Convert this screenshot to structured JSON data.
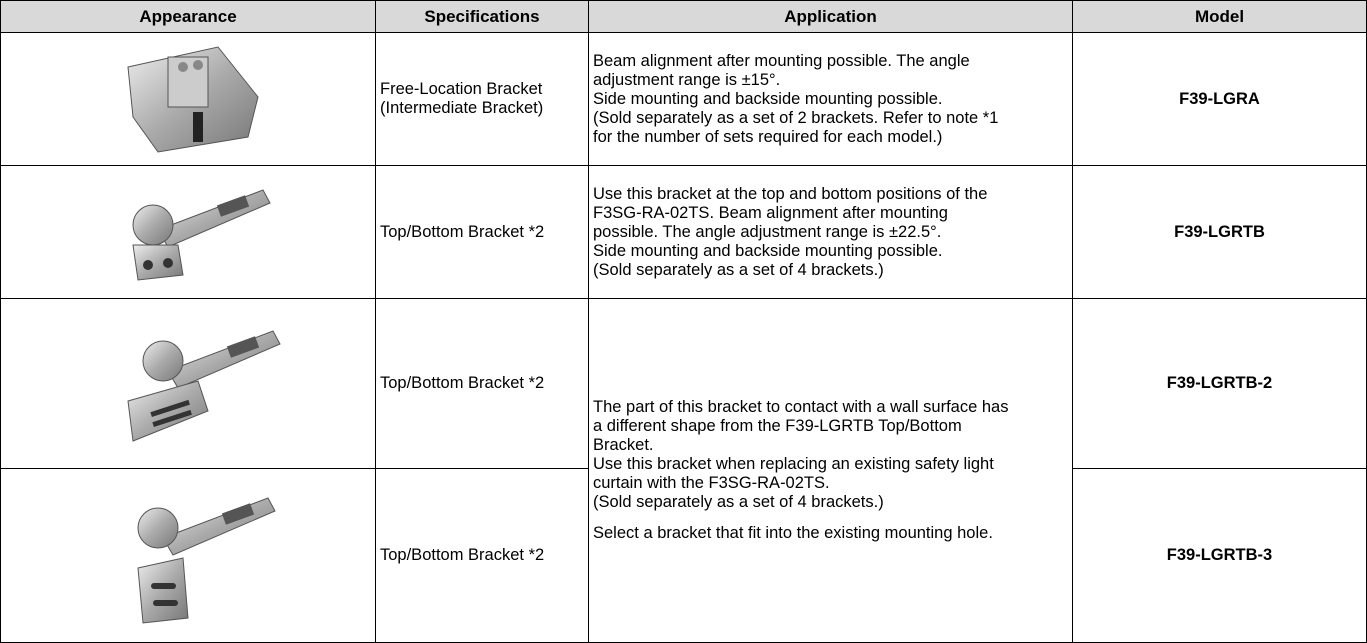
{
  "table": {
    "headers": [
      "Appearance",
      "Specifications",
      "Application",
      "Model"
    ],
    "rows": [
      {
        "specifications": [
          "Free-Location Bracket",
          "(Intermediate Bracket)"
        ],
        "application": [
          [
            "Beam alignment after mounting possible. The angle",
            "adjustment range is ±15°.",
            "Side mounting and backside mounting possible.",
            "(Sold separately as a set of 2 brackets. Refer to note *1",
            "for the number of sets required for each model.)"
          ]
        ],
        "model": "F39-LGRA"
      },
      {
        "specifications": [
          "Top/Bottom Bracket *2"
        ],
        "application": [
          [
            "Use this bracket at the top and bottom positions of the",
            "F3SG-RA-02TS. Beam alignment after mounting",
            "possible. The angle adjustment range is ±22.5°.",
            "Side mounting and backside mounting possible.",
            "(Sold separately as a set of 4 brackets.)"
          ]
        ],
        "model": "F39-LGRTB"
      },
      {
        "specifications": [
          "Top/Bottom Bracket *2"
        ],
        "application": [
          [
            "The part of this bracket to contact with a wall surface has",
            "a different shape from the F39-LGRTB Top/Bottom",
            "Bracket.",
            "Use this bracket when replacing an existing safety light",
            "curtain with the F3SG-RA-02TS.",
            "(Sold separately as a set of 4 brackets.)"
          ],
          [
            "Select a bracket that fit into the existing mounting hole."
          ]
        ],
        "model": "F39-LGRTB-2"
      },
      {
        "specifications": [
          "Top/Bottom Bracket *2"
        ],
        "model": "F39-LGRTB-3"
      }
    ]
  }
}
